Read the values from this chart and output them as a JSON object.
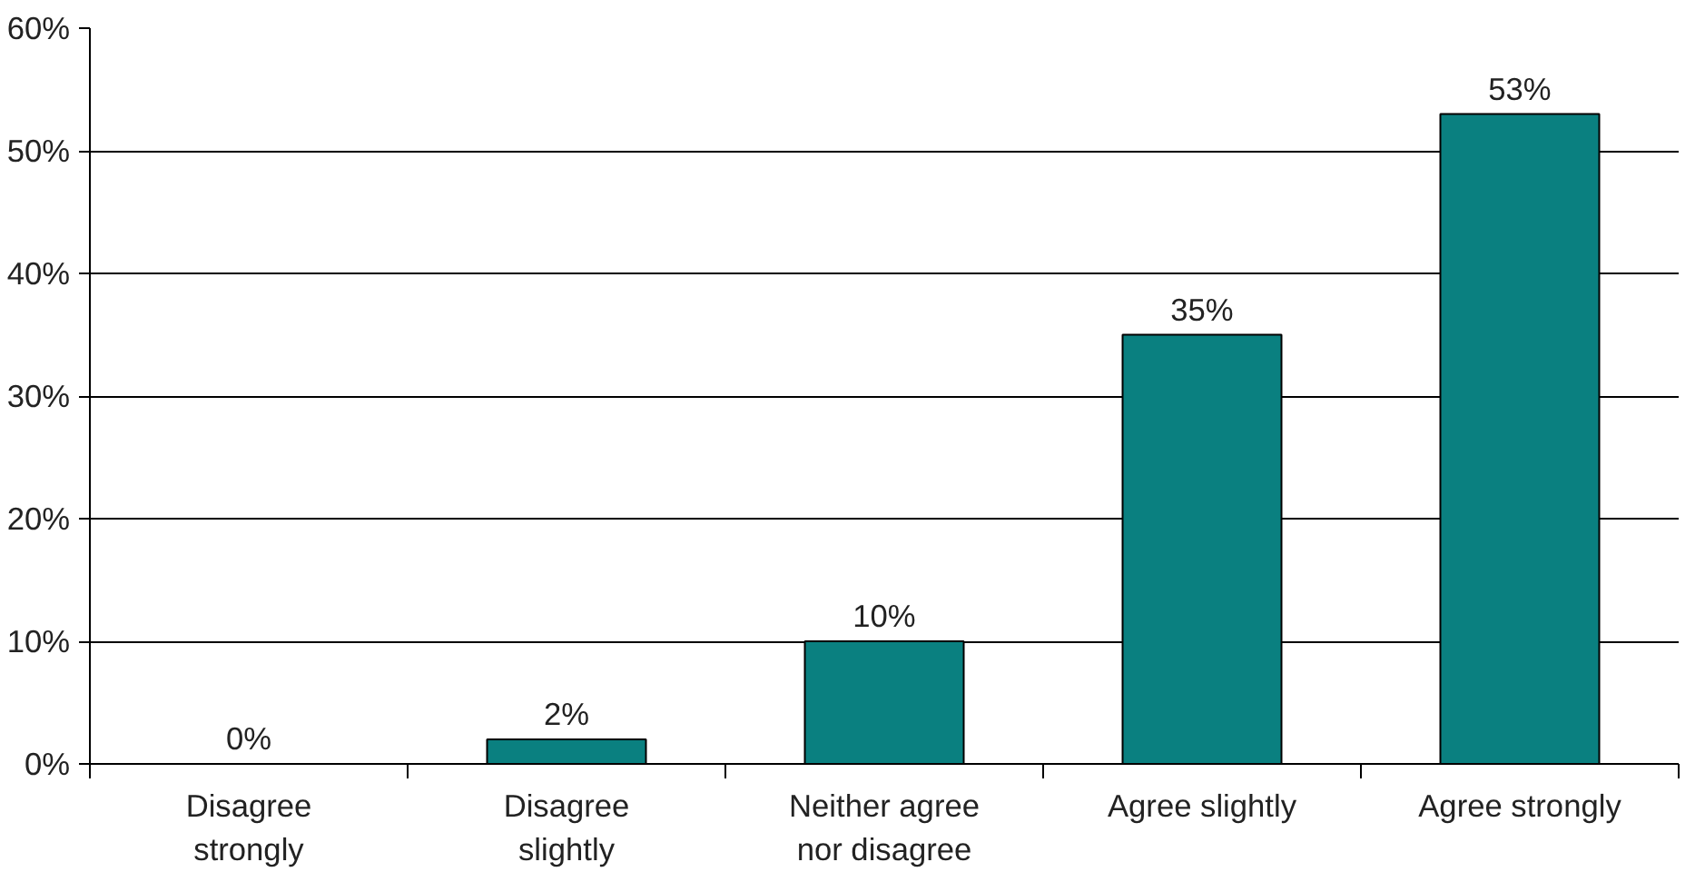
{
  "chart_data": {
    "type": "bar",
    "categories": [
      "Disagree\nstrongly",
      "Disagree\nslightly",
      "Neither agree\nnor disagree",
      "Agree slightly",
      "Agree strongly"
    ],
    "values": [
      0,
      2,
      10,
      35,
      53
    ],
    "value_labels": [
      "0%",
      "2%",
      "10%",
      "35%",
      "53%"
    ],
    "color": "#0a8080",
    "ylim": [
      0,
      60
    ],
    "yticks": [
      {
        "value": 0,
        "label": "0%"
      },
      {
        "value": 10,
        "label": "10%"
      },
      {
        "value": 20,
        "label": "20%"
      },
      {
        "value": 30,
        "label": "30%"
      },
      {
        "value": 40,
        "label": "40%"
      },
      {
        "value": 50,
        "label": "50%"
      },
      {
        "value": 60,
        "label": "60%"
      }
    ],
    "grid": "y"
  }
}
